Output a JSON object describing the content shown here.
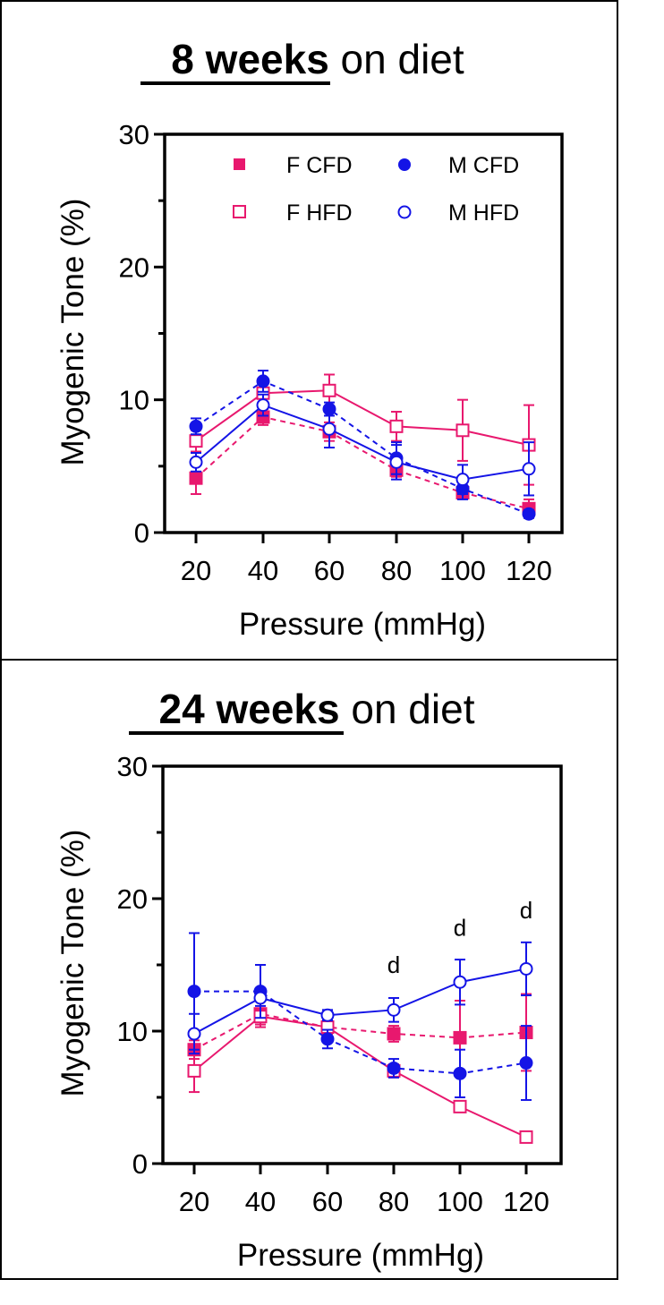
{
  "chart_data": [
    {
      "type": "line",
      "title_bold": "8 weeks",
      "title_rest": " on diet",
      "xlabel": "Pressure (mmHg)",
      "ylabel": "Myogenic Tone (%)",
      "ylim": [
        0,
        30
      ],
      "y_ticks": [
        "0",
        "10",
        "20",
        "30"
      ],
      "x": [
        "20",
        "40",
        "60",
        "80",
        "100",
        "120"
      ],
      "legend_position": "top-right",
      "series": [
        {
          "name": "F CFD",
          "color": "#e8186e",
          "marker": "square",
          "filled": true,
          "dashed": true,
          "values": [
            4.1,
            8.7,
            7.6,
            4.7,
            3.0,
            1.8
          ],
          "errors": [
            1.2,
            0.6,
            0.7,
            0.5,
            0.4,
            0.7
          ]
        },
        {
          "name": "F HFD",
          "color": "#e8186e",
          "marker": "square",
          "filled": false,
          "dashed": false,
          "values": [
            6.9,
            10.5,
            10.7,
            8.0,
            7.7,
            6.6
          ],
          "errors": [
            0.8,
            0.8,
            1.2,
            1.1,
            2.3,
            3.0
          ]
        },
        {
          "name": "M CFD",
          "color": "#1414e6",
          "marker": "circle",
          "filled": true,
          "dashed": true,
          "values": [
            8.0,
            11.4,
            9.3,
            5.6,
            3.3,
            1.4
          ],
          "errors": [
            0.6,
            0.8,
            0.5,
            1.2,
            0.8,
            0.3
          ]
        },
        {
          "name": "M HFD",
          "color": "#1414e6",
          "marker": "circle",
          "filled": false,
          "dashed": false,
          "values": [
            5.3,
            9.6,
            7.8,
            5.3,
            4.0,
            4.8
          ],
          "errors": [
            0.7,
            0.8,
            1.4,
            1.3,
            1.1,
            2.0
          ]
        }
      ],
      "annotations": []
    },
    {
      "type": "line",
      "title_bold": "24 weeks",
      "title_rest": " on diet",
      "xlabel": "Pressure (mmHg)",
      "ylabel": "Myogenic Tone (%)",
      "ylim": [
        0,
        30
      ],
      "y_ticks": [
        "0",
        "10",
        "20",
        "30"
      ],
      "x": [
        "20",
        "40",
        "60",
        "80",
        "100",
        "120"
      ],
      "series": [
        {
          "name": "F CFD",
          "color": "#e8186e",
          "marker": "square",
          "filled": true,
          "dashed": true,
          "values": [
            8.6,
            11.3,
            10.3,
            9.8,
            9.5,
            9.9
          ],
          "errors": [
            0.7,
            1.0,
            0.5,
            0.6,
            2.8,
            2.9
          ]
        },
        {
          "name": "F HFD",
          "color": "#e8186e",
          "marker": "square",
          "filled": false,
          "dashed": false,
          "values": [
            7.0,
            11.1,
            10.3,
            7.0,
            4.3,
            2.0
          ],
          "errors": [
            1.6,
            0.6,
            0.4,
            0.5,
            0.4,
            0.4
          ]
        },
        {
          "name": "M CFD",
          "color": "#1414e6",
          "marker": "circle",
          "filled": true,
          "dashed": true,
          "values": [
            13.0,
            13.0,
            9.4,
            7.2,
            6.8,
            7.6
          ],
          "errors": [
            4.4,
            2.0,
            0.7,
            0.7,
            1.8,
            2.8
          ]
        },
        {
          "name": "M HFD",
          "color": "#1414e6",
          "marker": "circle",
          "filled": false,
          "dashed": false,
          "values": [
            9.8,
            12.5,
            11.2,
            11.6,
            13.7,
            14.7
          ],
          "errors": [
            1.5,
            0.6,
            0.4,
            0.9,
            1.7,
            2.0
          ]
        }
      ],
      "annotations": [
        {
          "text": "d",
          "x": "80",
          "y": 14.4
        },
        {
          "text": "d",
          "x": "100",
          "y": 17.2
        },
        {
          "text": "d",
          "x": "120",
          "y": 18.5
        }
      ]
    }
  ]
}
